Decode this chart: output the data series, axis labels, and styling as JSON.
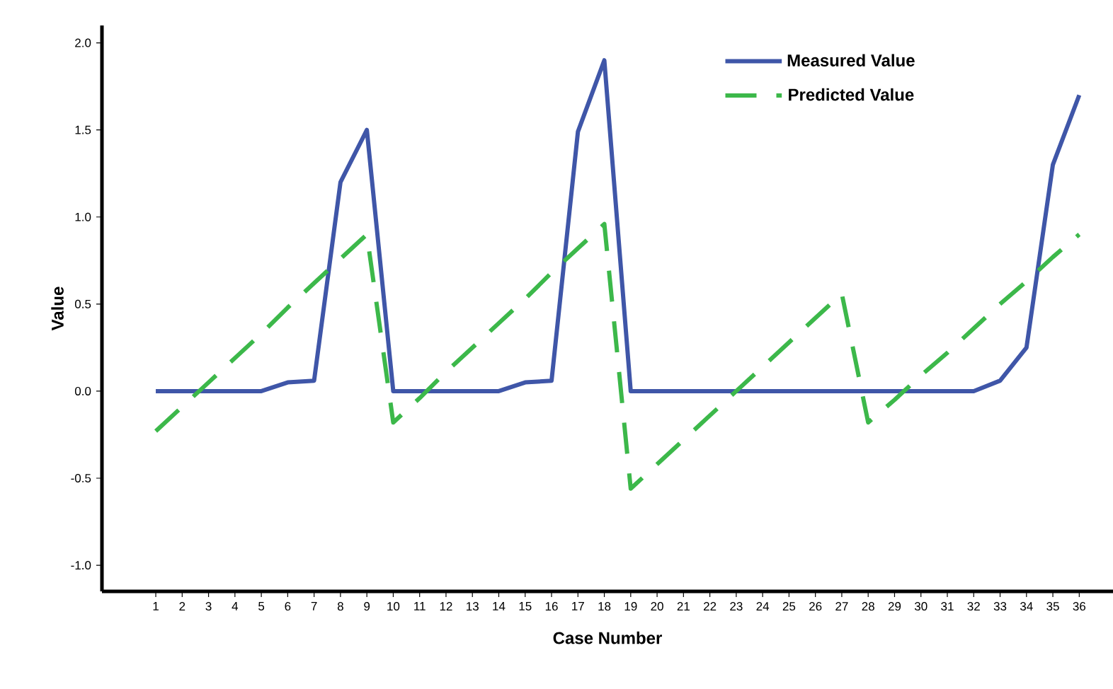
{
  "chart_data": {
    "type": "line",
    "xlabel": "Case Number",
    "ylabel": "Value",
    "categories": [
      "1",
      "2",
      "3",
      "4",
      "5",
      "6",
      "7",
      "8",
      "9",
      "10",
      "11",
      "12",
      "13",
      "14",
      "15",
      "16",
      "17",
      "18",
      "19",
      "20",
      "21",
      "22",
      "23",
      "24",
      "25",
      "26",
      "27",
      "28",
      "29",
      "30",
      "31",
      "32",
      "33",
      "34",
      "35",
      "36"
    ],
    "series": [
      {
        "name": "Measured Value",
        "color": "#3f56a8",
        "line_style": "solid",
        "values": [
          0,
          0,
          0,
          0,
          0,
          0.05,
          0.06,
          1.2,
          1.5,
          0,
          0,
          0,
          0,
          0,
          0.05,
          0.06,
          1.49,
          1.9,
          0,
          0,
          0,
          0,
          0,
          0,
          0,
          0,
          0,
          0,
          0,
          0,
          0,
          0,
          0.06,
          0.25,
          1.3,
          1.7
        ]
      },
      {
        "name": "Predicted Value",
        "color": "#3cb84a",
        "line_style": "dashed",
        "values": [
          -0.23,
          -0.09,
          0.05,
          0.19,
          0.33,
          0.48,
          0.62,
          0.76,
          0.9,
          -0.18,
          -0.04,
          0.11,
          0.25,
          0.39,
          0.53,
          0.68,
          0.82,
          0.96,
          -0.56,
          -0.42,
          -0.28,
          -0.14,
          0,
          0.14,
          0.28,
          0.42,
          0.56,
          -0.18,
          -0.05,
          0.09,
          0.22,
          0.36,
          0.5,
          0.63,
          0.77,
          0.9
        ]
      }
    ],
    "ylim": [
      -1.15,
      2.1
    ],
    "yticks": [
      {
        "value": -1,
        "label": "-1.0"
      },
      {
        "value": -0.5,
        "label": "-0.5"
      },
      {
        "value": 0,
        "label": "0.0"
      },
      {
        "value": 0.5,
        "label": "0.5"
      },
      {
        "value": 1,
        "label": "1.0"
      },
      {
        "value": 1.5,
        "label": "1.5"
      },
      {
        "value": 2,
        "label": "2.0"
      }
    ],
    "legend": "top right",
    "grid": false
  }
}
